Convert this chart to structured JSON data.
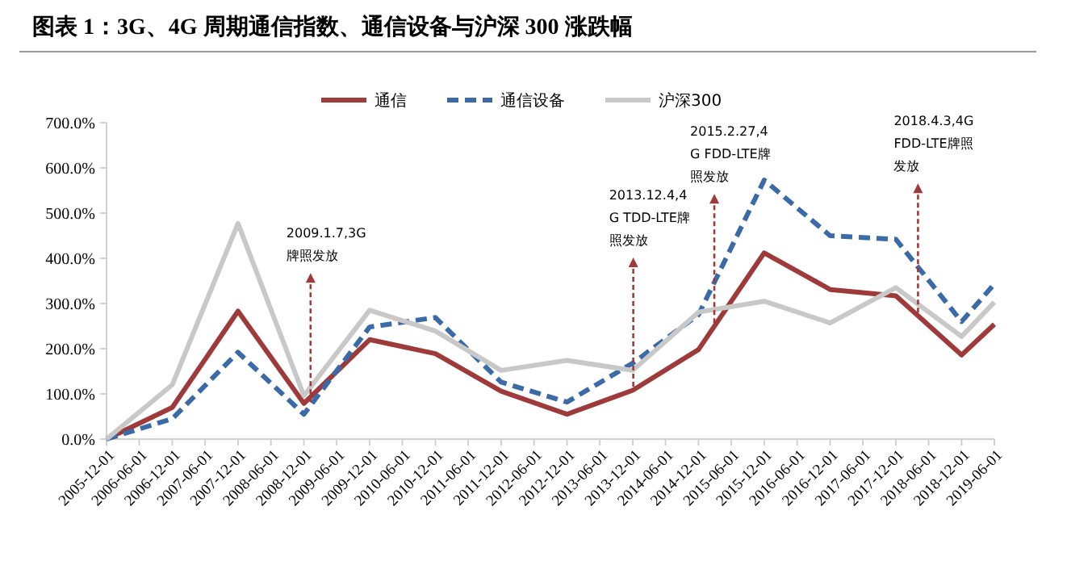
{
  "chart_data": {
    "type": "line",
    "title": "图表 1：3G、4G 周期通信指数、通信设备与沪深 300 涨跌幅",
    "x": [
      "2005-12-01",
      "2006-12-01",
      "2007-12-01",
      "2008-12-01",
      "2009-12-01",
      "2010-12-01",
      "2011-12-01",
      "2012-12-01",
      "2013-12-01",
      "2014-12-01",
      "2015-12-01",
      "2016-12-01",
      "2017-12-01",
      "2018-12-01",
      "2019-06-01"
    ],
    "series": [
      {
        "name": "通信",
        "color": "#9e3a3a",
        "line_style": "solid",
        "values": [
          0,
          70,
          283,
          79,
          220,
          189,
          106,
          55,
          108,
          198,
          412,
          331,
          317,
          186,
          254
        ]
      },
      {
        "name": "通信设备",
        "color": "#3a6aa8",
        "line_style": "dashed",
        "values": [
          0,
          45,
          192,
          55,
          248,
          269,
          126,
          82,
          168,
          275,
          573,
          450,
          442,
          260,
          343
        ]
      },
      {
        "name": "沪深300",
        "color": "#c8c8c8",
        "line_style": "solid",
        "values": [
          0,
          120,
          477,
          96,
          285,
          239,
          152,
          174,
          152,
          281,
          305,
          257,
          335,
          227,
          303
        ]
      }
    ],
    "xlim": [
      "2005-12-01",
      "2019-06-01"
    ],
    "xticks": [
      "2005-12-01",
      "2006-06-01",
      "2006-12-01",
      "2007-06-01",
      "2007-12-01",
      "2008-06-01",
      "2008-12-01",
      "2009-06-01",
      "2009-12-01",
      "2010-06-01",
      "2010-12-01",
      "2011-06-01",
      "2011-12-01",
      "2012-06-01",
      "2012-12-01",
      "2013-06-01",
      "2013-12-01",
      "2014-06-01",
      "2014-12-01",
      "2015-06-01",
      "2015-12-01",
      "2016-06-01",
      "2016-12-01",
      "2017-06-01",
      "2017-12-01",
      "2018-06-01",
      "2018-12-01",
      "2019-06-01"
    ],
    "ylim": [
      0,
      700
    ],
    "yticks": [
      {
        "value": 0,
        "label": "0.0%"
      },
      {
        "value": 100,
        "label": "100.0%"
      },
      {
        "value": 200,
        "label": "200.0%"
      },
      {
        "value": 300,
        "label": "300.0%"
      },
      {
        "value": 400,
        "label": "400.0%"
      },
      {
        "value": 500,
        "label": "500.0%"
      },
      {
        "value": 600,
        "label": "600.0%"
      },
      {
        "value": 700,
        "label": "700.0%"
      }
    ],
    "ref_lines": [
      {
        "axis": "x",
        "value": "2009-01-07",
        "label": "2009.1.7,3G牌照发放",
        "color": "#9e3a3a",
        "line_style": "dashed"
      },
      {
        "axis": "x",
        "value": "2013-12-04",
        "label": "2013.12.4,4G TDD-LTE牌照发放",
        "color": "#9e3a3a",
        "line_style": "dashed"
      },
      {
        "axis": "x",
        "value": "2015-02-27",
        "label": "2015.2.27,4G FDD-LTE牌照发放",
        "color": "#9e3a3a",
        "line_style": "dashed"
      },
      {
        "axis": "x",
        "value": "2018-04-03",
        "label": "2018.4.3,4G FDD-LTE牌照发放",
        "color": "#9e3a3a",
        "line_style": "dashed"
      }
    ],
    "legend": "top",
    "marker": "none",
    "grid": false
  }
}
